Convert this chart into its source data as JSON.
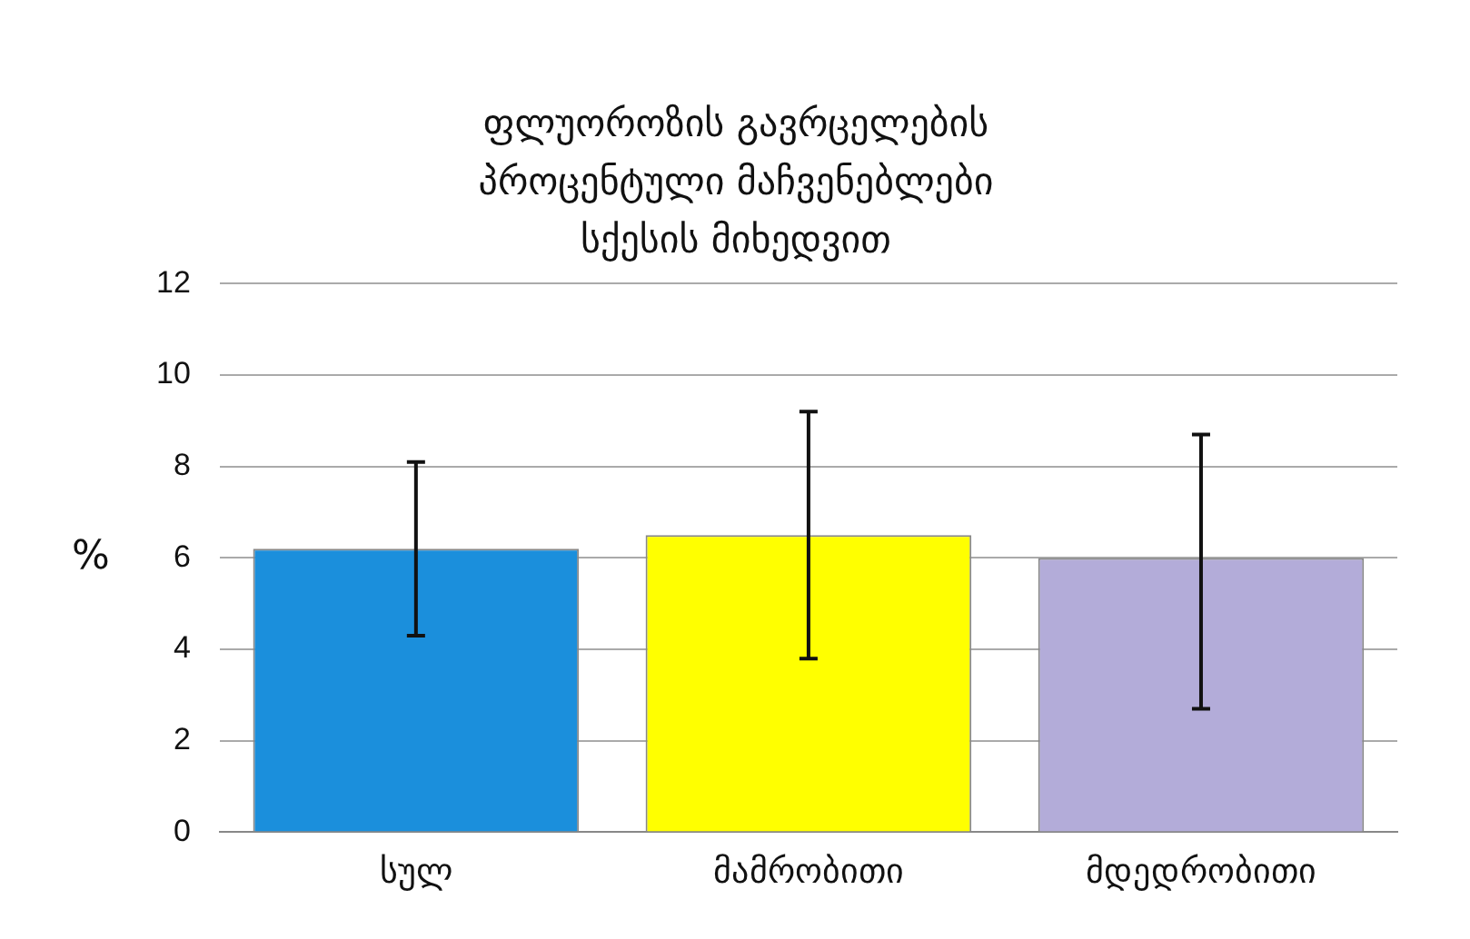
{
  "chart_data": {
    "type": "bar",
    "title": "ფლუოროზის გავრცელების პროცენტული მაჩვენებლები სქესის მიხედვით",
    "ylabel": "%",
    "categories": [
      "სულ",
      "მამრობითი",
      "მდედრობითი"
    ],
    "values": [
      6.2,
      6.5,
      6.0
    ],
    "colors": [
      "#1b8fdc",
      "#ffff00",
      "#b3acd9"
    ],
    "errors": [
      [
        4.3,
        8.1
      ],
      [
        3.8,
        9.2
      ],
      [
        2.7,
        8.7
      ]
    ],
    "ylim": [
      0,
      12
    ],
    "yticks": [
      0,
      2,
      4,
      6,
      8,
      10,
      12
    ],
    "grid": "y",
    "legend": false
  }
}
